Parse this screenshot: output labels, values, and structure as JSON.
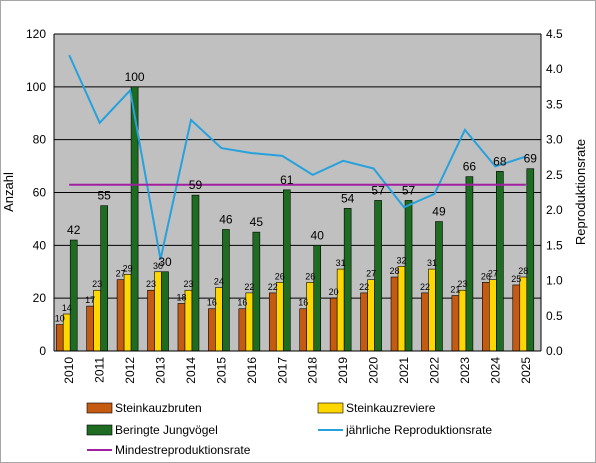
{
  "chart_data": {
    "type": "bar",
    "categories": [
      "2010",
      "2011",
      "2012",
      "2013",
      "2014",
      "2015",
      "2016",
      "2017",
      "2018",
      "2019",
      "2020",
      "2021",
      "2022",
      "2023",
      "2024",
      "2025"
    ],
    "series": [
      {
        "name": "Steinkauzbruten",
        "color": "#c55a11",
        "axis": "left",
        "values": [
          10,
          17,
          27,
          23,
          18,
          16,
          16,
          22,
          16,
          20,
          22,
          28,
          22,
          21,
          26,
          25
        ]
      },
      {
        "name": "Steinkauzreviere",
        "color": "#ffd700",
        "axis": "left",
        "values": [
          14,
          23,
          29,
          30,
          23,
          24,
          22,
          26,
          26,
          31,
          27,
          32,
          31,
          23,
          27,
          28
        ]
      },
      {
        "name": "Beringte Jungvögel",
        "color": "#1e6b22",
        "axis": "left",
        "values": [
          42,
          55,
          100,
          30,
          59,
          46,
          45,
          61,
          40,
          54,
          57,
          57,
          49,
          66,
          68,
          69
        ]
      },
      {
        "name": "jährliche Reproduktionsrate",
        "color": "#27a1dc",
        "type": "line",
        "axis": "right",
        "values": [
          4.2,
          3.24,
          3.7,
          1.3,
          3.28,
          2.88,
          2.81,
          2.77,
          2.5,
          2.7,
          2.59,
          2.04,
          2.23,
          3.14,
          2.62,
          2.76
        ]
      },
      {
        "name": "Mindestreproduktionsrate",
        "color": "#a020a0",
        "type": "line",
        "axis": "right",
        "values": [
          2.36,
          2.36,
          2.36,
          2.36,
          2.36,
          2.36,
          2.36,
          2.36,
          2.36,
          2.36,
          2.36,
          2.36,
          2.36,
          2.36,
          2.36,
          2.36
        ]
      }
    ],
    "ylabel": "Anzahl",
    "y2label": "Reproduktionsrate",
    "ylim": [
      0,
      120
    ],
    "yticks": [
      "0",
      "20",
      "40",
      "60",
      "80",
      "100",
      "120"
    ],
    "y2lim": [
      0,
      4.5
    ],
    "y2ticks": [
      "0.0",
      "0.5",
      "1.0",
      "1.5",
      "2.0",
      "2.5",
      "3.0",
      "3.5",
      "4.0",
      "4.5"
    ],
    "grid": true,
    "plot_background": "#c0c0c0",
    "legend_position": "bottom"
  }
}
